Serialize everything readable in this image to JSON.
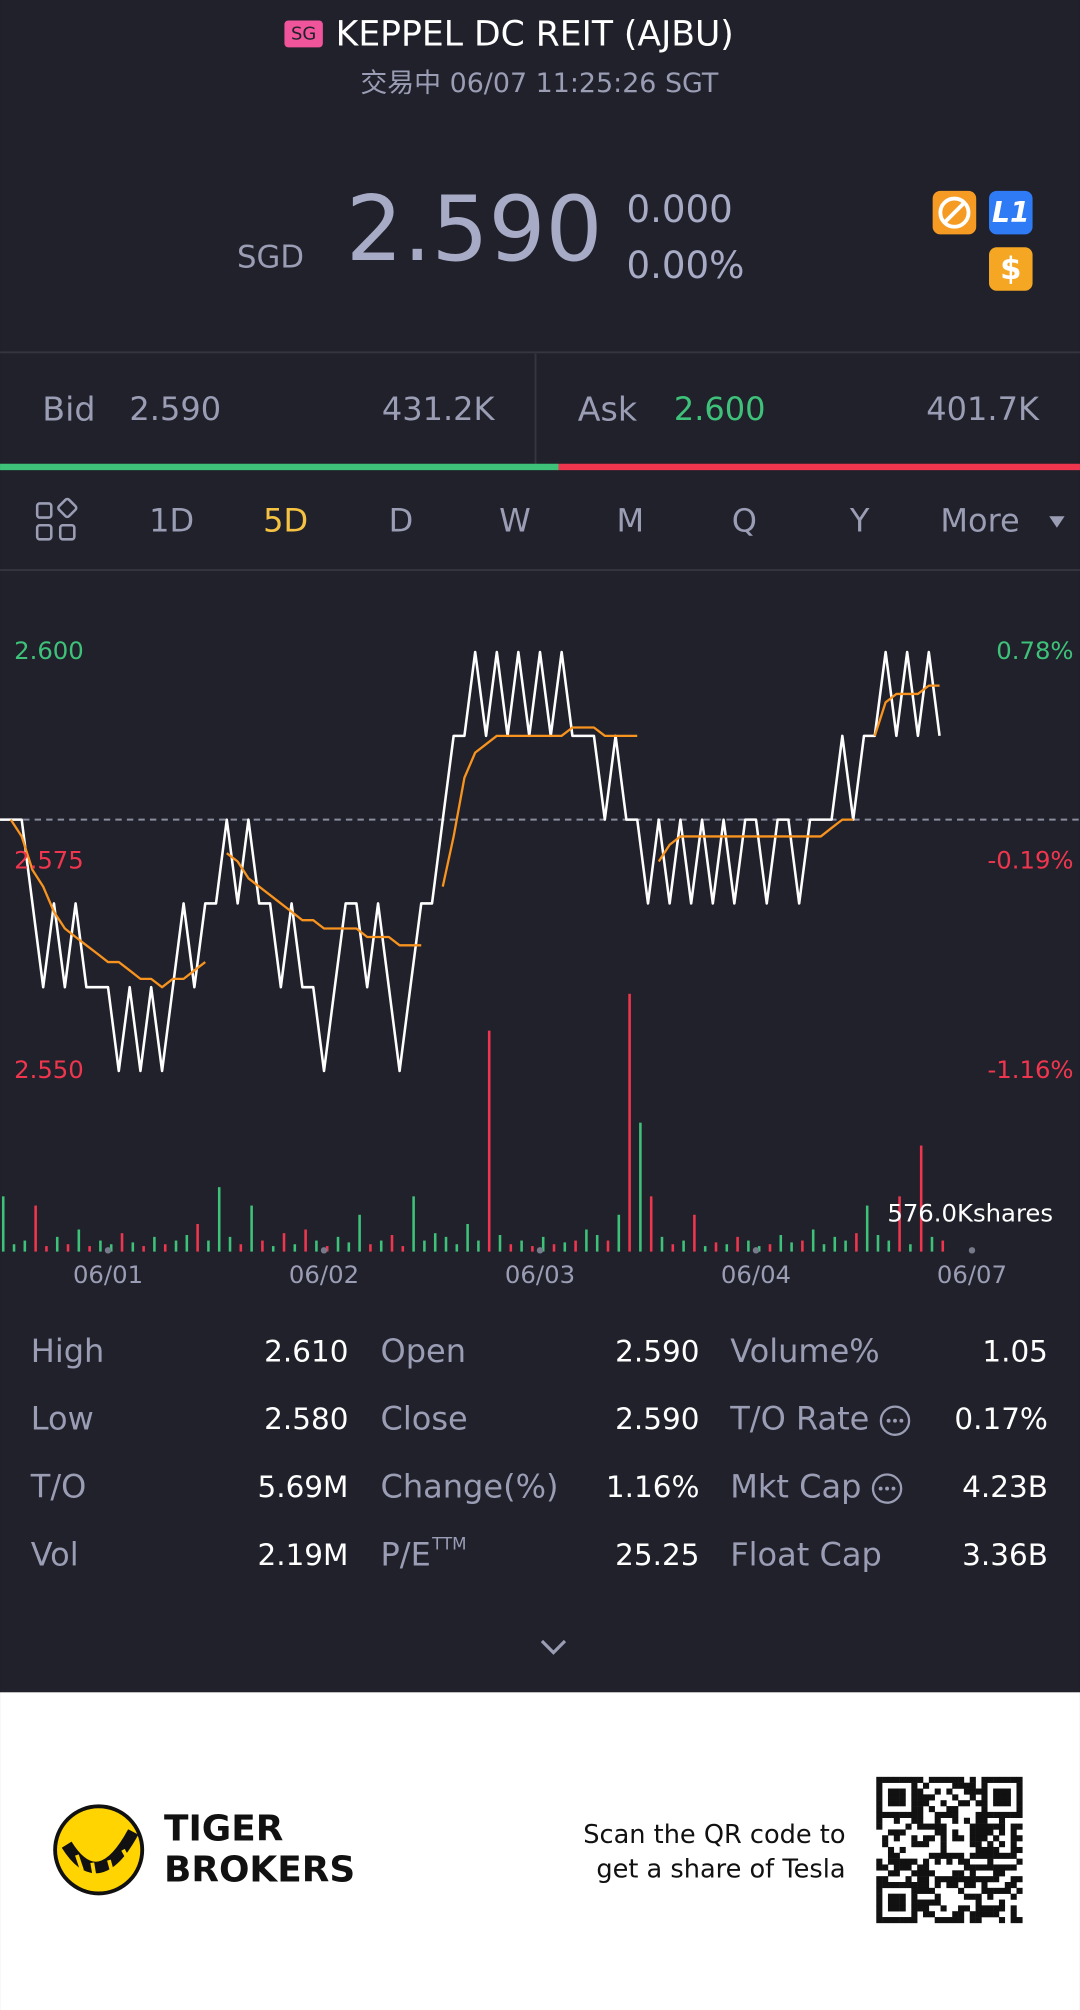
{
  "header": {
    "badge": "SG",
    "title": "KEPPEL DC REIT (AJBU)",
    "status": "交易中 06/07 11:25:26 SGT"
  },
  "quote": {
    "currency": "SGD",
    "price": "2.590",
    "change": "0.000",
    "change_pct": "0.00%",
    "icons": {
      "level": "L1",
      "dollar": "$"
    }
  },
  "order_book": {
    "bid_label": "Bid",
    "bid_price": "2.590",
    "bid_size": "431.2K",
    "ask_label": "Ask",
    "ask_price": "2.600",
    "ask_size": "401.7K"
  },
  "tabs": {
    "items": [
      "1D",
      "5D",
      "D",
      "W",
      "M",
      "Q",
      "Y",
      "More"
    ],
    "active": 1
  },
  "chart_data": {
    "type": "line",
    "categories": [
      null,
      null,
      null,
      null,
      null,
      null,
      null,
      null,
      null,
      null,
      "06/01",
      null,
      null,
      null,
      null,
      null,
      null,
      null,
      null,
      null,
      null,
      null,
      null,
      null,
      null,
      null,
      null,
      null,
      null,
      null,
      "06/02",
      null,
      null,
      null,
      null,
      null,
      null,
      null,
      null,
      null,
      null,
      null,
      null,
      null,
      null,
      null,
      null,
      null,
      null,
      null,
      "06/03",
      null,
      null,
      null,
      null,
      null,
      null,
      null,
      null,
      null,
      null,
      null,
      null,
      null,
      null,
      null,
      null,
      null,
      null,
      null,
      "06/04",
      null,
      null,
      null,
      null,
      null,
      null,
      null,
      null,
      null,
      null,
      null,
      null,
      null,
      null,
      null,
      null,
      null,
      null,
      null,
      "06/07",
      null,
      null,
      null,
      null,
      null,
      null,
      null,
      null,
      null
    ],
    "series": [
      {
        "color": "#ffffff",
        "values": [
          2.58,
          2.58,
          2.58,
          2.57,
          2.56,
          2.57,
          2.56,
          2.57,
          2.56,
          2.56,
          2.56,
          2.55,
          2.56,
          2.55,
          2.56,
          2.55,
          2.56,
          2.57,
          2.56,
          2.57,
          2.57,
          2.58,
          2.57,
          2.58,
          2.57,
          2.57,
          2.56,
          2.57,
          2.56,
          2.56,
          2.55,
          2.56,
          2.57,
          2.57,
          2.56,
          2.57,
          2.56,
          2.55,
          2.56,
          2.57,
          2.57,
          2.58,
          2.59,
          2.59,
          2.6,
          2.59,
          2.6,
          2.59,
          2.6,
          2.59,
          2.6,
          2.59,
          2.6,
          2.59,
          2.59,
          2.59,
          2.58,
          2.59,
          2.58,
          2.58,
          2.57,
          2.58,
          2.57,
          2.58,
          2.57,
          2.58,
          2.57,
          2.58,
          2.57,
          2.58,
          2.58,
          2.57,
          2.58,
          2.58,
          2.57,
          2.58,
          2.58,
          2.58,
          2.59,
          2.58,
          2.59,
          2.59,
          2.6,
          2.59,
          2.6,
          2.59,
          2.6,
          2.59,
          null,
          null,
          null,
          null,
          null,
          null,
          null,
          null,
          null,
          null,
          null,
          null
        ]
      },
      {
        "color": "#f7931e",
        "values": [
          null,
          2.58,
          2.578,
          2.574,
          2.572,
          2.569,
          2.567,
          2.566,
          2.565,
          2.564,
          2.563,
          2.563,
          2.562,
          2.561,
          2.561,
          2.56,
          2.561,
          2.561,
          2.562,
          2.563,
          null,
          2.576,
          2.575,
          2.573,
          2.572,
          2.571,
          2.57,
          2.569,
          2.568,
          2.568,
          2.567,
          2.567,
          2.567,
          2.567,
          2.566,
          2.566,
          2.566,
          2.565,
          2.565,
          2.565,
          null,
          2.572,
          2.578,
          2.585,
          2.588,
          2.589,
          2.59,
          2.59,
          2.59,
          2.59,
          2.59,
          2.59,
          2.59,
          2.591,
          2.591,
          2.591,
          2.59,
          2.59,
          2.59,
          2.59,
          null,
          2.575,
          2.577,
          2.578,
          2.578,
          2.578,
          2.578,
          2.578,
          2.578,
          2.578,
          2.578,
          2.578,
          2.578,
          2.578,
          2.578,
          2.578,
          2.578,
          2.579,
          2.58,
          2.58,
          null,
          2.59,
          2.594,
          2.595,
          2.595,
          2.595,
          2.596,
          2.596,
          null,
          null,
          null,
          null,
          null,
          null,
          null,
          null,
          null,
          null,
          null,
          null
        ]
      }
    ],
    "ylim": [
      2.55,
      2.6
    ],
    "yticks": [
      {
        "value": 2.6,
        "label": "2.600"
      },
      {
        "value": 2.575,
        "label": "2.575"
      },
      {
        "value": 2.55,
        "label": "2.550"
      }
    ],
    "y2lim": [
      -1.16,
      0.78
    ],
    "y2ticks": [
      {
        "value": 0.78,
        "label": "0.78%"
      },
      {
        "value": -0.19,
        "label": "-0.19%"
      },
      {
        "value": -1.16,
        "label": "-1.16%"
      }
    ],
    "baseline": 2.58,
    "up_color": "#3ec27a",
    "down_color": "#f0364e",
    "volume": {
      "label": "576.0Kshares",
      "ylim": [
        0,
        1600
      ],
      "values": [
        300,
        40,
        60,
        250,
        30,
        80,
        40,
        120,
        30,
        60,
        40,
        100,
        50,
        30,
        80,
        40,
        60,
        90,
        150,
        60,
        350,
        80,
        40,
        250,
        60,
        30,
        100,
        40,
        120,
        60,
        30,
        80,
        50,
        200,
        40,
        60,
        90,
        30,
        300,
        60,
        100,
        80,
        40,
        150,
        60,
        1200,
        90,
        40,
        60,
        30,
        80,
        40,
        50,
        60,
        120,
        90,
        60,
        200,
        1400,
        700,
        300,
        80,
        40,
        60,
        200,
        30,
        50,
        40,
        80,
        60,
        30,
        40,
        90,
        50,
        60,
        120,
        40,
        80,
        60,
        100,
        250,
        90,
        60,
        300,
        40,
        576,
        80,
        60,
        null,
        null,
        null,
        null,
        null,
        null,
        null,
        null,
        null,
        null,
        null,
        null
      ]
    }
  },
  "stats": {
    "rows": [
      [
        {
          "label": "High",
          "value": "2.610"
        },
        {
          "label": "Open",
          "value": "2.590"
        },
        {
          "label": "Volume%",
          "value": "1.05"
        }
      ],
      [
        {
          "label": "Low",
          "value": "2.580"
        },
        {
          "label": "Close",
          "value": "2.590"
        },
        {
          "label": "T/O Rate",
          "value": "0.17%",
          "info": true
        }
      ],
      [
        {
          "label": "T/O",
          "value": "5.69M"
        },
        {
          "label": "Change(%)",
          "value": "1.16%"
        },
        {
          "label": "Mkt Cap",
          "value": "4.23B",
          "info": true
        }
      ],
      [
        {
          "label": "Vol",
          "value": "2.19M"
        },
        {
          "label": "P/E",
          "sup": "TTM",
          "value": "25.25"
        },
        {
          "label": "Float Cap",
          "value": "3.36B"
        }
      ]
    ]
  },
  "footer": {
    "brand_line1": "TIGER",
    "brand_line2": "BROKERS",
    "cta_line1": "Scan the QR code to",
    "cta_line2": "get a share of Tesla"
  }
}
